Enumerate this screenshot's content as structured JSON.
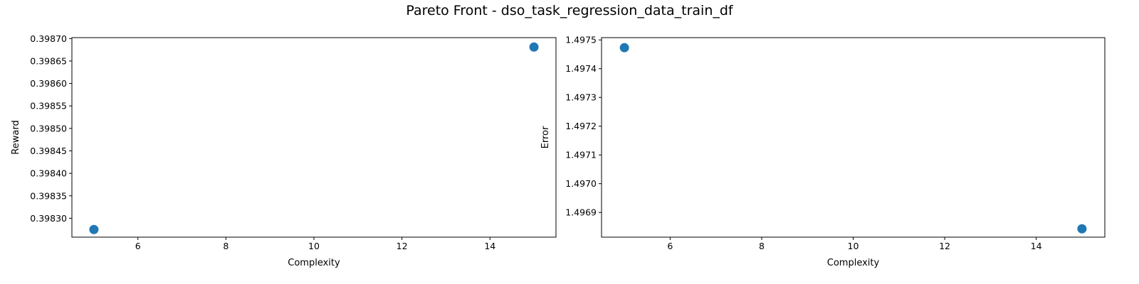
{
  "figure": {
    "title": "Pareto Front - dso_task_regression_data_train_df"
  },
  "chart_data": [
    {
      "type": "scatter",
      "xlabel": "Complexity",
      "ylabel": "Reward",
      "xlim": [
        4.5,
        15.5
      ],
      "ylim": [
        0.398258,
        0.398702
      ],
      "x_ticks": [
        6,
        8,
        10,
        12,
        14
      ],
      "y_ticks": [
        0.3983,
        0.39835,
        0.3984,
        0.39845,
        0.3985,
        0.39855,
        0.3986,
        0.39865,
        0.3987
      ],
      "y_tick_labels": [
        "0.39830",
        "0.39835",
        "0.39840",
        "0.39845",
        "0.39850",
        "0.39855",
        "0.39860",
        "0.39865",
        "0.39870"
      ],
      "points": [
        {
          "x": 5,
          "y": 0.398275
        },
        {
          "x": 15,
          "y": 0.398681
        }
      ],
      "grid": false,
      "marker_color": "#1f77b4"
    },
    {
      "type": "scatter",
      "xlabel": "Complexity",
      "ylabel": "Error",
      "xlim": [
        4.5,
        15.5
      ],
      "ylim": [
        1.496814,
        1.497508
      ],
      "x_ticks": [
        6,
        8,
        10,
        12,
        14
      ],
      "y_ticks": [
        1.4969,
        1.497,
        1.4971,
        1.4972,
        1.4973,
        1.4974,
        1.4975
      ],
      "y_tick_labels": [
        "1.4969",
        "1.4970",
        "1.4971",
        "1.4972",
        "1.4973",
        "1.4974",
        "1.4975"
      ],
      "points": [
        {
          "x": 5,
          "y": 1.497473
        },
        {
          "x": 15,
          "y": 1.496843
        }
      ],
      "grid": false,
      "marker_color": "#1f77b4"
    }
  ]
}
